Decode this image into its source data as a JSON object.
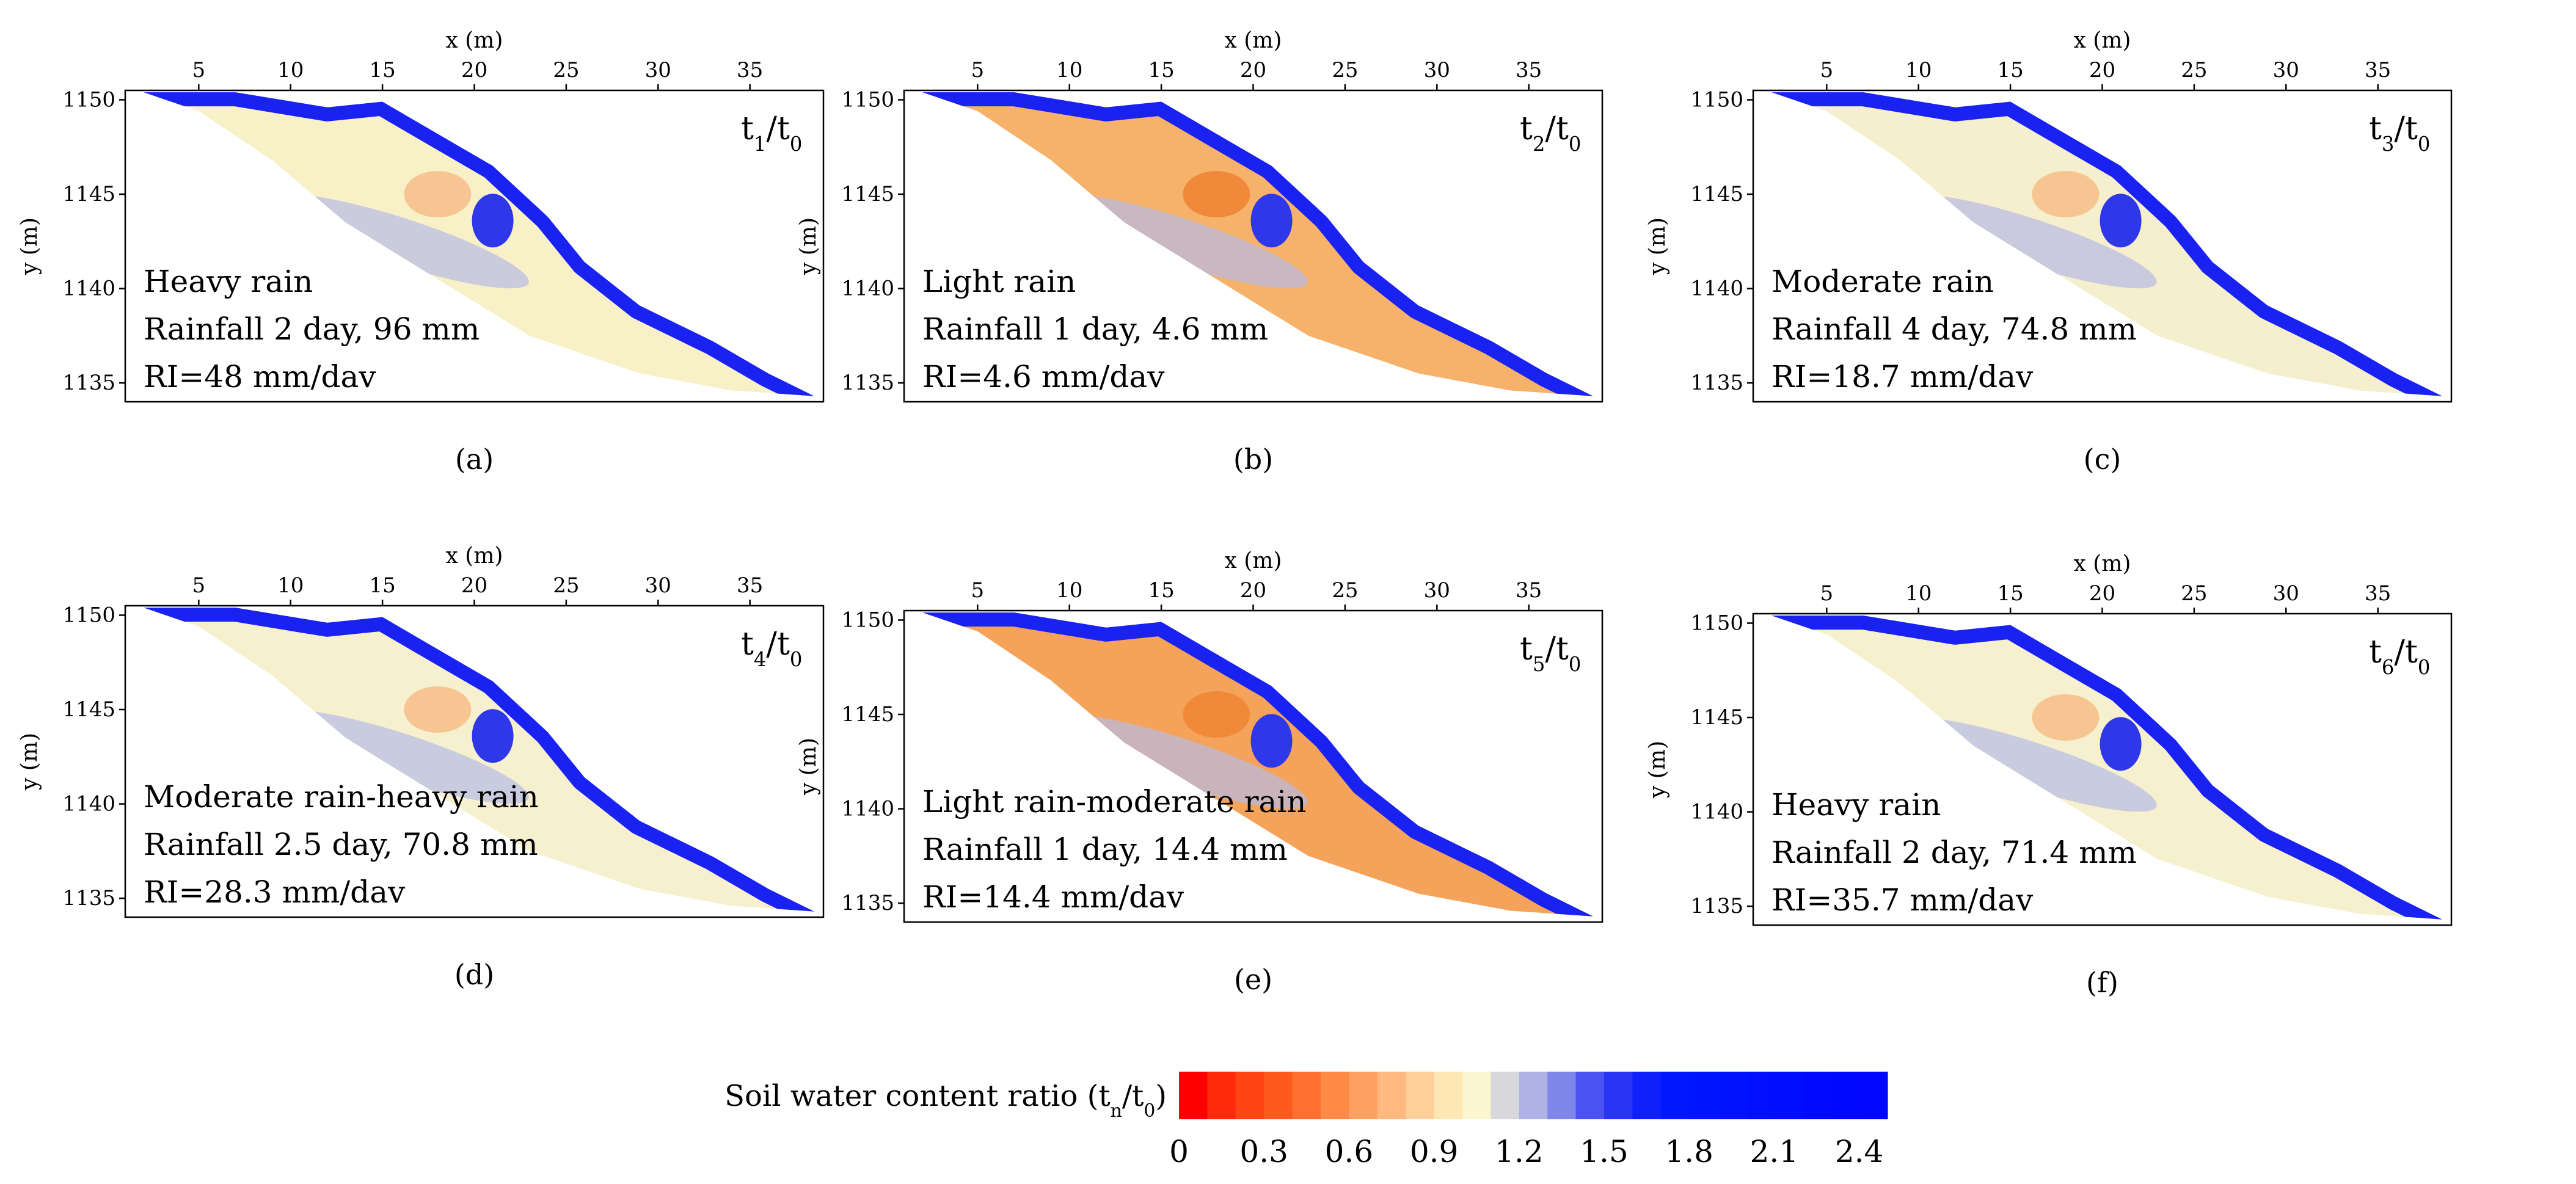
{
  "figure": {
    "panels": [
      {
        "id": "a",
        "caption": "(a)",
        "ratio_main": "t",
        "ratio_sub": "1",
        "ratio_den": "/t",
        "ratio_den_sub": "0",
        "event": "Heavy rain",
        "rainfall": "Rainfall 2 day, 96 mm",
        "intensity": "RI=48 mm/dav",
        "fill": "#f8f1c8"
      },
      {
        "id": "b",
        "caption": "(b)",
        "ratio_main": "t",
        "ratio_sub": "2",
        "ratio_den": "/t",
        "ratio_den_sub": "0",
        "event": "Light rain",
        "rainfall": "Rainfall 1 day, 4.6 mm",
        "intensity": "RI=4.6 mm/dav",
        "fill": "#f6b26b"
      },
      {
        "id": "c",
        "caption": "(c)",
        "ratio_main": "t",
        "ratio_sub": "3",
        "ratio_den": "/t",
        "ratio_den_sub": "0",
        "event": "Moderate rain",
        "rainfall": "Rainfall 4 day, 74.8 mm",
        "intensity": "RI=18.7 mm/dav",
        "fill": "#f5efcd"
      },
      {
        "id": "d",
        "caption": "(d)",
        "ratio_main": "t",
        "ratio_sub": "4",
        "ratio_den": "/t",
        "ratio_den_sub": "0",
        "event": "Moderate rain-heavy rain",
        "rainfall": "Rainfall 2.5 day, 70.8 mm",
        "intensity": "RI=28.3 mm/dav",
        "fill": "#f6f0cf"
      },
      {
        "id": "e",
        "caption": "(e)",
        "ratio_main": "t",
        "ratio_sub": "5",
        "ratio_den": "/t",
        "ratio_den_sub": "0",
        "event": "Light rain-moderate rain",
        "rainfall": "Rainfall 1 day, 14.4 mm",
        "intensity": "RI=14.4 mm/dav",
        "fill": "#f5a35a"
      },
      {
        "id": "f",
        "caption": "(f)",
        "ratio_main": "t",
        "ratio_sub": "6",
        "ratio_den": "/t",
        "ratio_den_sub": "0",
        "event": "Heavy rain",
        "rainfall": "Rainfall 2 day, 71.4 mm",
        "intensity": "RI=35.7 mm/dav",
        "fill": "#f6f0cf"
      }
    ],
    "colorbar": {
      "label": "Soil water content ratio (t",
      "label_sub": "n",
      "label_mid": "/t",
      "label_sub2": "0",
      "label_end": ")",
      "tick_labels": [
        "0",
        "0.3",
        "0.6",
        "0.9",
        "1.2",
        "1.5",
        "1.8",
        "2.1",
        "2.4"
      ],
      "colors": [
        "#ff0000",
        "#ff2a0a",
        "#ff4514",
        "#ff5a1e",
        "#ff7030",
        "#ff8a45",
        "#ffa060",
        "#ffb87e",
        "#ffcf9a",
        "#ffe7b5",
        "#fbf6d0",
        "#d7d7dc",
        "#aeb2e6",
        "#7f86ea",
        "#4a52f0",
        "#2a34f5",
        "#1020fa",
        "#0018ff",
        "#0015ff",
        "#0012ff",
        "#0010ff",
        "#000dff",
        "#000aff",
        "#0008ff",
        "#0006ff"
      ]
    }
  },
  "chart_data": {
    "type": "heatmap",
    "title": "",
    "xlabel": "x (m)",
    "ylabel": "y (m)",
    "xlim": [
      1,
      39
    ],
    "ylim": [
      1134,
      1150.5
    ],
    "x_ticks": [
      5,
      10,
      15,
      20,
      25,
      30,
      35
    ],
    "y_ticks": [
      1135,
      1140,
      1145,
      1150
    ],
    "slope_profile_top": [
      [
        2,
        1150.4
      ],
      [
        7,
        1150.4
      ],
      [
        12,
        1149.6
      ],
      [
        15,
        1149.9
      ],
      [
        18,
        1148.2
      ],
      [
        21,
        1146.5
      ],
      [
        24,
        1143.8
      ],
      [
        26,
        1141.4
      ],
      [
        29,
        1139.1
      ],
      [
        33,
        1137.2
      ],
      [
        36,
        1135.5
      ],
      [
        38.5,
        1134.3
      ]
    ],
    "slope_profile_bottom": [
      [
        38.5,
        1134.3
      ],
      [
        34,
        1134.6
      ],
      [
        29,
        1135.5
      ],
      [
        23,
        1137.5
      ],
      [
        18,
        1140.5
      ],
      [
        13,
        1143.5
      ],
      [
        9,
        1146.8
      ],
      [
        5,
        1149.4
      ],
      [
        2,
        1150.4
      ]
    ],
    "colorbar_range": [
      0,
      2.5
    ],
    "colorbar_ticks": [
      0,
      0.3,
      0.6,
      0.9,
      1.2,
      1.5,
      1.8,
      2.1,
      2.4
    ],
    "panels": [
      {
        "id": "a",
        "ratio": "t1/t0",
        "rain": "Heavy rain",
        "days": 2,
        "rainfall_mm": 96,
        "RI_mm_per_day": 48
      },
      {
        "id": "b",
        "ratio": "t2/t0",
        "rain": "Light rain",
        "days": 1,
        "rainfall_mm": 4.6,
        "RI_mm_per_day": 4.6
      },
      {
        "id": "c",
        "ratio": "t3/t0",
        "rain": "Moderate rain",
        "days": 4,
        "rainfall_mm": 74.8,
        "RI_mm_per_day": 18.7
      },
      {
        "id": "d",
        "ratio": "t4/t0",
        "rain": "Moderate rain-heavy rain",
        "days": 2.5,
        "rainfall_mm": 70.8,
        "RI_mm_per_day": 28.3
      },
      {
        "id": "e",
        "ratio": "t5/t0",
        "rain": "Light rain-moderate rain",
        "days": 1,
        "rainfall_mm": 14.4,
        "RI_mm_per_day": 14.4
      },
      {
        "id": "f",
        "ratio": "t6/t0",
        "rain": "Heavy rain",
        "days": 2,
        "rainfall_mm": 71.4,
        "RI_mm_per_day": 35.7
      }
    ]
  }
}
